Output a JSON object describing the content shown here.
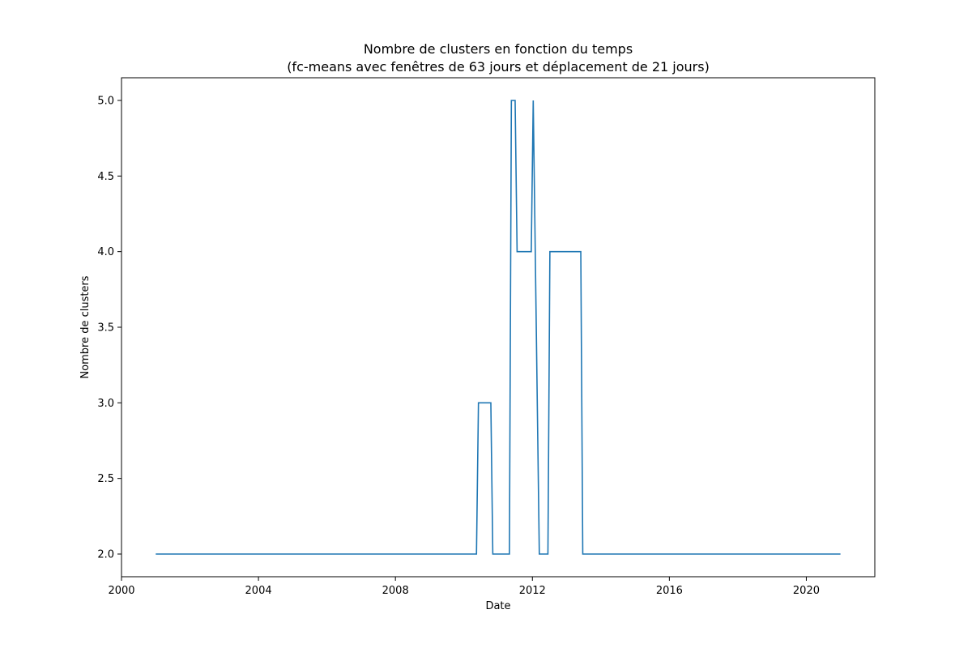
{
  "chart_data": {
    "type": "line",
    "title": "Nombre de clusters en fonction du temps",
    "subtitle": "(fc-means avec fenêtres de 63 jours et déplacement de 21 jours)",
    "xlabel": "Date",
    "ylabel": "Nombre de clusters",
    "xlim": [
      "2000-01-01",
      "2022-01-01"
    ],
    "ylim": [
      1.85,
      5.15
    ],
    "xticks": [
      "2000",
      "2004",
      "2008",
      "2012",
      "2016",
      "2020"
    ],
    "yticks": [
      "2.0",
      "2.5",
      "3.0",
      "3.5",
      "4.0",
      "4.5",
      "5.0"
    ],
    "grid": false,
    "series": [
      {
        "color": "#1f77b4",
        "points": [
          {
            "x": "2001-01-01",
            "y": 2
          },
          {
            "x": "2010-05-15",
            "y": 2
          },
          {
            "x": "2010-06-05",
            "y": 3
          },
          {
            "x": "2010-10-15",
            "y": 3
          },
          {
            "x": "2010-11-05",
            "y": 2
          },
          {
            "x": "2011-05-01",
            "y": 2
          },
          {
            "x": "2011-05-22",
            "y": 5
          },
          {
            "x": "2011-07-01",
            "y": 5
          },
          {
            "x": "2011-07-22",
            "y": 4
          },
          {
            "x": "2011-12-20",
            "y": 4
          },
          {
            "x": "2012-01-10",
            "y": 5
          },
          {
            "x": "2012-03-15",
            "y": 2
          },
          {
            "x": "2012-06-15",
            "y": 2
          },
          {
            "x": "2012-07-06",
            "y": 4
          },
          {
            "x": "2013-06-01",
            "y": 4
          },
          {
            "x": "2013-06-22",
            "y": 2
          },
          {
            "x": "2020-12-31",
            "y": 2
          }
        ]
      }
    ]
  }
}
